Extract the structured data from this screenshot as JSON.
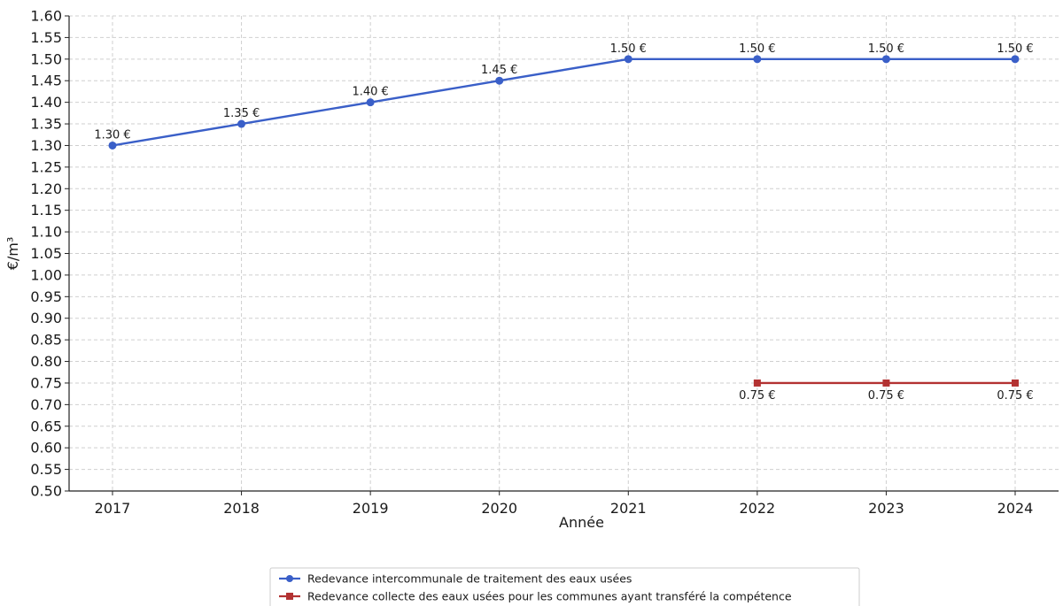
{
  "chart_data": {
    "type": "line",
    "title": "",
    "xlabel": "Année",
    "ylabel": "€/m³",
    "categories": [
      "2017",
      "2018",
      "2019",
      "2020",
      "2021",
      "2022",
      "2023",
      "2024"
    ],
    "ylim": [
      0.5,
      1.6
    ],
    "ytick_step": 0.05,
    "grid": true,
    "legend_position": "bottom-center",
    "series": [
      {
        "name": "Redevance intercommunale de traitement des eaux usées",
        "color": "#3a5fc8",
        "marker": "circle",
        "values": [
          1.3,
          1.35,
          1.4,
          1.45,
          1.5,
          1.5,
          1.5,
          1.5
        ],
        "labels": [
          "1.30 €",
          "1.35 €",
          "1.40 €",
          "1.45 €",
          "1.50 €",
          "1.50 €",
          "1.50 €",
          "1.50 €"
        ],
        "label_position": "above"
      },
      {
        "name": "Redevance collecte des eaux usées pour les communes ayant transféré la compétence",
        "color": "#b33232",
        "marker": "square",
        "values": [
          null,
          null,
          null,
          null,
          null,
          0.75,
          0.75,
          0.75
        ],
        "labels": [
          null,
          null,
          null,
          null,
          null,
          "0.75 €",
          "0.75 €",
          "0.75 €"
        ],
        "label_position": "below"
      }
    ]
  }
}
